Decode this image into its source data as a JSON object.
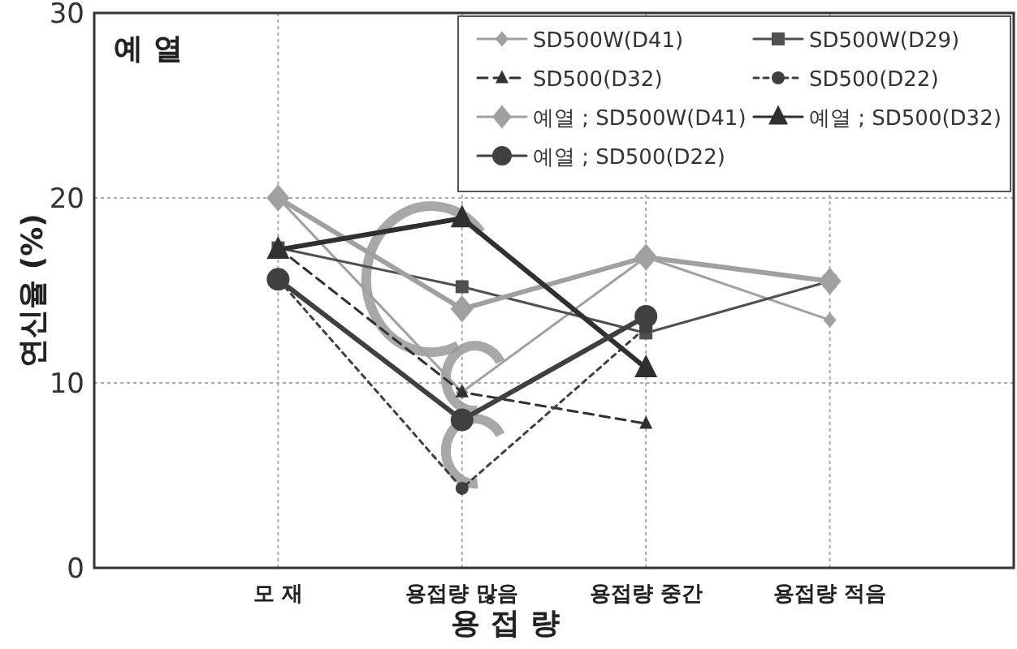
{
  "chart_data": {
    "type": "line",
    "ylabel": "연신율 (%)",
    "xlabel": "용 접 량",
    "annotations": [
      "예 열"
    ],
    "categories": [
      "모 재",
      "용접량 많음",
      "용접량 중간",
      "용접량 적음"
    ],
    "ylim": [
      0,
      30
    ],
    "yticks": [
      0,
      10,
      20,
      30
    ],
    "grid": true,
    "legend": "top right",
    "series": [
      {
        "name": "SD500W(D41)",
        "color": "#a0a0a0",
        "marker": "diamond",
        "line_style": "solid",
        "values": [
          20,
          9.5,
          16.8,
          13.4
        ]
      },
      {
        "name": "SD500W(D29)",
        "color": "#505050",
        "marker": "square",
        "line_style": "solid",
        "values": [
          17.3,
          15.2,
          12.7,
          15.5
        ]
      },
      {
        "name": "SD500(D32)",
        "color": "#303030",
        "marker": "triangle",
        "line_style": "dashed",
        "values": [
          17.3,
          9.5,
          7.8,
          null
        ]
      },
      {
        "name": "SD500(D22)",
        "color": "#404040",
        "marker": "circle",
        "line_style": "dotted",
        "values": [
          15.6,
          4.3,
          13.0,
          null
        ]
      },
      {
        "name": "예열 ; SD500W(D41)",
        "color": "#a0a0a0",
        "marker": "diamond",
        "line_style": "solid",
        "values": [
          20,
          14,
          16.8,
          15.5
        ]
      },
      {
        "name": "예열 ; SD500(D32)",
        "color": "#303030",
        "marker": "triangle",
        "line_style": "solid",
        "values": [
          17.2,
          18.9,
          10.8,
          null
        ]
      },
      {
        "name": "예열 ; SD500(D22)",
        "color": "#404040",
        "marker": "circle",
        "line_style": "solid",
        "values": [
          15.6,
          8.0,
          13.6,
          null
        ]
      }
    ]
  }
}
